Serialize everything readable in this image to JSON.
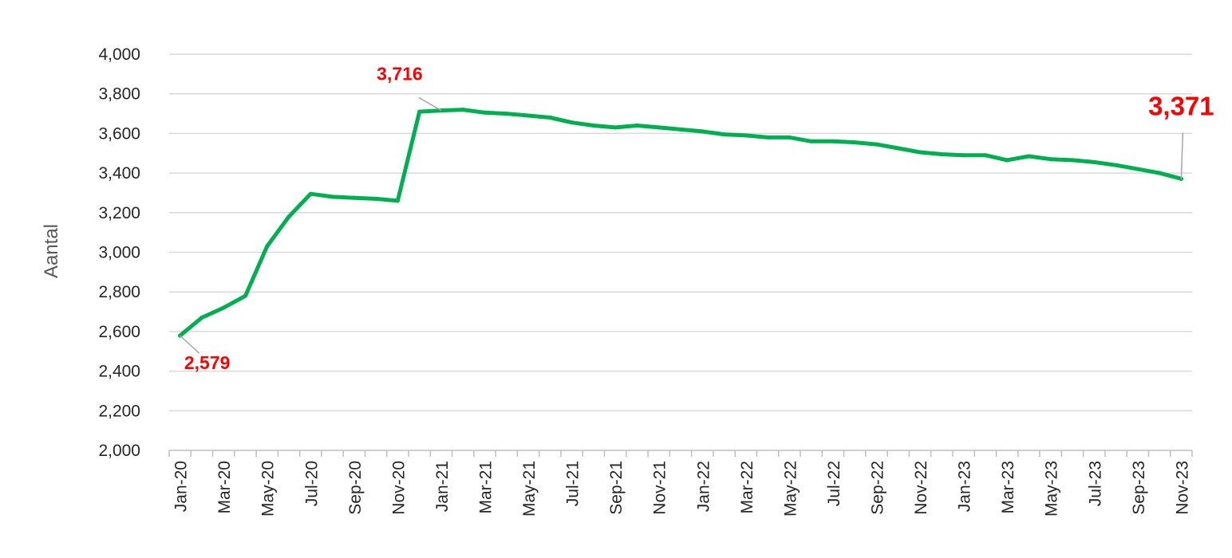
{
  "chart_data": {
    "type": "line",
    "title": "",
    "xlabel": "",
    "ylabel": "Aantal",
    "ylim": [
      2000,
      4000
    ],
    "y_ticks": [
      2000,
      2200,
      2400,
      2600,
      2800,
      3000,
      3200,
      3400,
      3600,
      3800,
      4000
    ],
    "y_tick_labels": [
      "2,000",
      "2,200",
      "2,400",
      "2,600",
      "2,800",
      "3,000",
      "3,200",
      "3,400",
      "3,600",
      "3,800",
      "4,000"
    ],
    "x_tick_labels": [
      "Jan-20",
      "Mar-20",
      "May-20",
      "Jul-20",
      "Sep-20",
      "Nov-20",
      "Jan-21",
      "Mar-21",
      "May-21",
      "Jul-21",
      "Sep-21",
      "Nov-21",
      "Jan-22",
      "Mar-22",
      "May-22",
      "Jul-22",
      "Sep-22",
      "Nov-22",
      "Jan-23",
      "Mar-23",
      "May-23",
      "Jul-23",
      "Sep-23",
      "Nov-23"
    ],
    "grid": true,
    "legend": "none",
    "line_color": "#00b050",
    "annotation_color": "#ff0000",
    "x": [
      "Jan-20",
      "Feb-20",
      "Mar-20",
      "Apr-20",
      "May-20",
      "Jun-20",
      "Jul-20",
      "Aug-20",
      "Sep-20",
      "Oct-20",
      "Nov-20",
      "Dec-20",
      "Jan-21",
      "Feb-21",
      "Mar-21",
      "Apr-21",
      "May-21",
      "Jun-21",
      "Jul-21",
      "Aug-21",
      "Sep-21",
      "Oct-21",
      "Nov-21",
      "Dec-21",
      "Jan-22",
      "Feb-22",
      "Mar-22",
      "Apr-22",
      "May-22",
      "Jun-22",
      "Jul-22",
      "Aug-22",
      "Sep-22",
      "Oct-22",
      "Nov-22",
      "Dec-22",
      "Jan-23",
      "Feb-23",
      "Mar-23",
      "Apr-23",
      "May-23",
      "Jun-23",
      "Jul-23",
      "Aug-23",
      "Sep-23",
      "Oct-23",
      "Nov-23"
    ],
    "series": [
      {
        "values": [
          2579,
          2670,
          2720,
          2780,
          3030,
          3180,
          3295,
          3280,
          3275,
          3270,
          3260,
          3710,
          3716,
          3720,
          3705,
          3700,
          3690,
          3680,
          3655,
          3640,
          3630,
          3640,
          3630,
          3620,
          3610,
          3595,
          3590,
          3580,
          3580,
          3560,
          3560,
          3555,
          3545,
          3525,
          3505,
          3495,
          3490,
          3490,
          3465,
          3485,
          3470,
          3465,
          3455,
          3440,
          3420,
          3400,
          3371
        ]
      }
    ],
    "annotations": [
      {
        "label": "2,579",
        "x": "Jan-20",
        "y": 2579
      },
      {
        "label": "3,716",
        "x": "Jan-21",
        "y": 3716
      },
      {
        "label": "3,371",
        "x": "Nov-23",
        "y": 3371
      }
    ]
  }
}
